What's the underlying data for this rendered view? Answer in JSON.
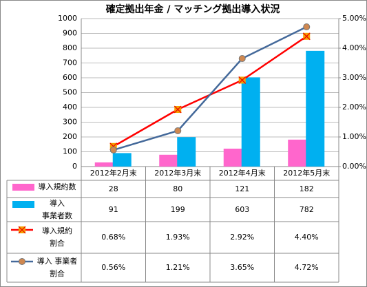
{
  "chart_data": {
    "type": "bar-line-table",
    "title": "確定拠出年金 / マッチング拠出導入状況",
    "categories": [
      "2012年2月末",
      "2012年3月末",
      "2012年4月末",
      "2012年5月末"
    ],
    "ylim": [
      0,
      1000
    ],
    "yticks": [
      0,
      100,
      200,
      300,
      400,
      500,
      600,
      700,
      800,
      900,
      1000
    ],
    "y2lim": [
      0,
      5
    ],
    "y2ticks": [
      {
        "value": 0,
        "label": "0.00%"
      },
      {
        "value": 1,
        "label": "1.00%"
      },
      {
        "value": 2,
        "label": "2.00%"
      },
      {
        "value": 3,
        "label": "3.00%"
      },
      {
        "value": 4,
        "label": "4.00%"
      },
      {
        "value": 5,
        "label": "5.00%"
      }
    ],
    "series": [
      {
        "name": "導入規約数",
        "type": "bar",
        "color": "#ff66cc",
        "values": [
          28,
          80,
          121,
          182
        ]
      },
      {
        "name": "導入\n事業者数",
        "type": "bar",
        "color": "#00b0f0",
        "values": [
          91,
          199,
          603,
          782
        ]
      },
      {
        "name": "導入規約\n割合",
        "type": "line",
        "axis": "y2",
        "color": "#ff0000",
        "marker": "x",
        "marker_color": "#f5a000",
        "values": [
          0.68,
          1.93,
          2.92,
          4.4
        ],
        "value_labels": [
          "0.68%",
          "1.93%",
          "2.92%",
          "4.40%"
        ]
      },
      {
        "name": "導入 事業者\n割合",
        "type": "line",
        "axis": "y2",
        "color": "#44699a",
        "marker": "circle",
        "marker_color": "#d08850",
        "values": [
          0.56,
          1.21,
          3.65,
          4.72
        ],
        "value_labels": [
          "0.56%",
          "1.21%",
          "3.65%",
          "4.72%"
        ]
      }
    ]
  }
}
